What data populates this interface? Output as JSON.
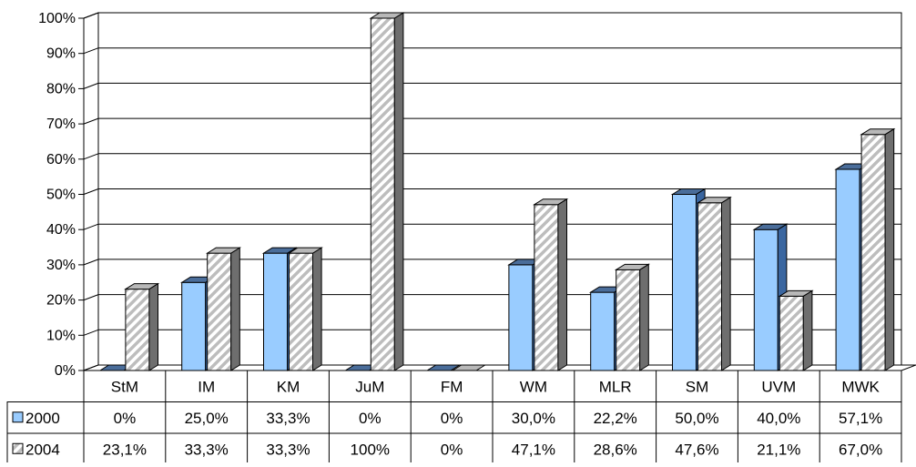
{
  "chart_data": {
    "type": "bar",
    "categories": [
      "StM",
      "IM",
      "KM",
      "JuM",
      "FM",
      "WM",
      "MLR",
      "SM",
      "UVM",
      "MWK"
    ],
    "ylim": [
      0,
      100
    ],
    "y_ticks": [
      0,
      10,
      20,
      30,
      40,
      50,
      60,
      70,
      80,
      90,
      100
    ],
    "y_tick_labels": [
      "0%",
      "10%",
      "20%",
      "30%",
      "40%",
      "50%",
      "60%",
      "70%",
      "80%",
      "90%",
      "100%"
    ],
    "grid": true,
    "legend": "data-table",
    "series": [
      {
        "name": "2000",
        "values": [
          0,
          25.0,
          33.3,
          0,
          0,
          30.0,
          22.2,
          50.0,
          40.0,
          57.1
        ],
        "labels": [
          "0%",
          "25,0%",
          "33,3%",
          "0%",
          "0%",
          "30,0%",
          "22,2%",
          "50,0%",
          "40,0%",
          "57,1%"
        ],
        "color": "#99ccff",
        "side_color": "#3a66a0",
        "top_color": "#4a6d9a",
        "pattern": "solid"
      },
      {
        "name": "2004",
        "values": [
          23.1,
          33.3,
          33.3,
          100,
          0,
          47.1,
          28.6,
          47.6,
          21.1,
          67.0
        ],
        "labels": [
          "23,1%",
          "33,3%",
          "33,3%",
          "100%",
          "0%",
          "47,1%",
          "28,6%",
          "47,6%",
          "21,1%",
          "67,0%"
        ],
        "color": "#d8d8d8",
        "side_color": "#6e6e6e",
        "top_color": "#b8b8b8",
        "pattern": "diagonal-hatch"
      }
    ]
  }
}
